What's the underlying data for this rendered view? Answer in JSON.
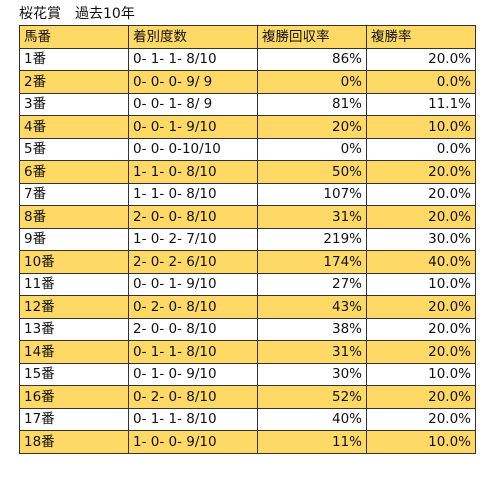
{
  "title": "桜花賞　過去10年",
  "highlight_color": "#ffd966",
  "table": {
    "headers": [
      "馬番",
      "着別度数",
      "複勝回収率",
      "複勝率"
    ],
    "rows": [
      {
        "gate": "1番",
        "record": "0- 1- 1- 8/10",
        "return_rate": "86%",
        "place_rate": "20.0%"
      },
      {
        "gate": "2番",
        "record": "0- 0- 0- 9/ 9",
        "return_rate": "0%",
        "place_rate": "0.0%"
      },
      {
        "gate": "3番",
        "record": "0- 0- 1- 8/ 9",
        "return_rate": "81%",
        "place_rate": "11.1%"
      },
      {
        "gate": "4番",
        "record": "0- 0- 1- 9/10",
        "return_rate": "20%",
        "place_rate": "10.0%"
      },
      {
        "gate": "5番",
        "record": "0- 0- 0-10/10",
        "return_rate": "0%",
        "place_rate": "0.0%"
      },
      {
        "gate": "6番",
        "record": "1- 1- 0- 8/10",
        "return_rate": "50%",
        "place_rate": "20.0%"
      },
      {
        "gate": "7番",
        "record": "1- 1- 0- 8/10",
        "return_rate": "107%",
        "place_rate": "20.0%"
      },
      {
        "gate": "8番",
        "record": "2- 0- 0- 8/10",
        "return_rate": "31%",
        "place_rate": "20.0%"
      },
      {
        "gate": "9番",
        "record": "1- 0- 2- 7/10",
        "return_rate": "219%",
        "place_rate": "30.0%"
      },
      {
        "gate": "10番",
        "record": "2- 0- 2- 6/10",
        "return_rate": "174%",
        "place_rate": "40.0%"
      },
      {
        "gate": "11番",
        "record": "0- 0- 1- 9/10",
        "return_rate": "27%",
        "place_rate": "10.0%"
      },
      {
        "gate": "12番",
        "record": "0- 2- 0- 8/10",
        "return_rate": "43%",
        "place_rate": "20.0%"
      },
      {
        "gate": "13番",
        "record": "2- 0- 0- 8/10",
        "return_rate": "38%",
        "place_rate": "20.0%"
      },
      {
        "gate": "14番",
        "record": "0- 1- 1- 8/10",
        "return_rate": "31%",
        "place_rate": "20.0%"
      },
      {
        "gate": "15番",
        "record": "0- 1- 0- 9/10",
        "return_rate": "30%",
        "place_rate": "10.0%"
      },
      {
        "gate": "16番",
        "record": "0- 2- 0- 8/10",
        "return_rate": "52%",
        "place_rate": "20.0%"
      },
      {
        "gate": "17番",
        "record": "0- 1- 1- 8/10",
        "return_rate": "40%",
        "place_rate": "20.0%"
      },
      {
        "gate": "18番",
        "record": "1- 0- 0- 9/10",
        "return_rate": "11%",
        "place_rate": "10.0%"
      }
    ]
  }
}
